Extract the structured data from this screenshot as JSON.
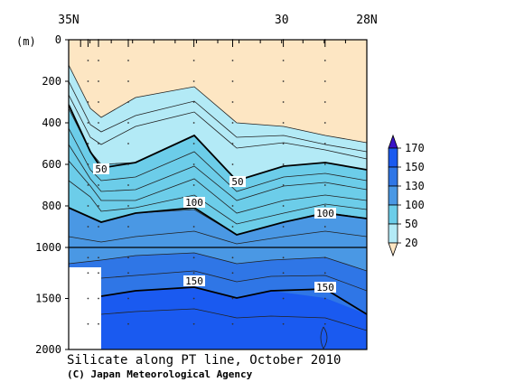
{
  "chart_data": {
    "type": "heatmap",
    "title": "Silicate along PT line, October 2010",
    "credit": "(C) Japan Meteorological Agency",
    "y_unit_label": "(m)",
    "x_top_ticks": [
      {
        "lat": 35,
        "label": "35N"
      },
      {
        "lat": 30,
        "label": "30"
      },
      {
        "lat": 28,
        "label": "28N"
      }
    ],
    "x_range_lat": [
      35,
      28
    ],
    "y_upper_ticks": [
      0,
      200,
      400,
      600,
      800,
      1000
    ],
    "y_lower_ticks": [
      1500,
      2000
    ],
    "y_upper_range": [
      0,
      1000
    ],
    "y_lower_range": [
      1000,
      2000
    ],
    "colorbar": {
      "levels": [
        20,
        50,
        100,
        130,
        150,
        170
      ],
      "labels": [
        "20",
        "50",
        "100",
        "130",
        "150",
        "170"
      ],
      "colors": [
        "#fde6c3",
        "#b3eaf6",
        "#6ccde9",
        "#4a98e4",
        "#2f76e6",
        "#1a5af0",
        "#3a14c8"
      ]
    },
    "contour_labels": [
      "50",
      "50",
      "100",
      "100",
      "150",
      "150"
    ],
    "stations_x_frac": [
      0.0,
      0.04,
      0.065,
      0.1,
      0.2,
      0.42,
      0.55,
      0.72,
      0.86,
      1.0
    ]
  }
}
